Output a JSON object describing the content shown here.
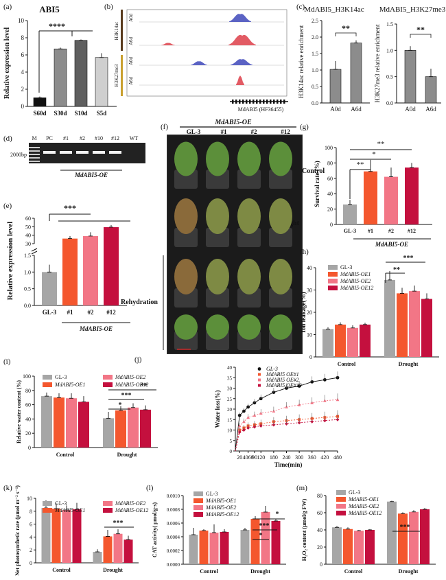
{
  "panel_labels": {
    "a": "(a)",
    "b": "(b)",
    "c": "(c)",
    "d": "(d)",
    "e": "(e)",
    "f": "(f)",
    "g": "(g)",
    "h": "(h)",
    "i": "(i)",
    "j": "(j)",
    "k": "(k)",
    "l": "(l)",
    "m": "(m)"
  },
  "colors": {
    "gl3": "#a6a6a6",
    "oe1": "#f4572e",
    "oe2": "#f27686",
    "oe12": "#c4103e",
    "ctrl": "#7f7f7f",
    "dark": "#111111",
    "peak_blue": "#5b63c4",
    "peak_red": "#e25b64"
  },
  "chart_data": [
    {
      "id": "a",
      "type": "bar",
      "title": "ABI5",
      "ylabel": "Relative expression level",
      "categories": [
        "S60d",
        "S30d",
        "S10d",
        "S5d"
      ],
      "values": [
        1.0,
        6.7,
        7.7,
        5.7
      ],
      "errors": [
        0.15,
        0.15,
        0.1,
        0.5
      ],
      "ylim": [
        0,
        10
      ],
      "yticks": [
        0,
        2,
        4,
        6,
        8,
        10
      ],
      "sig": "****",
      "bar_colors": [
        "#111111",
        "#8c8c8c",
        "#5f5f5f",
        "#cfcfcf"
      ]
    },
    {
      "id": "b",
      "type": "track",
      "tracks": [
        "H3K14ac",
        "H3K27me3"
      ],
      "rows": [
        "A0d",
        "A6d",
        "A0d",
        "A6d"
      ],
      "gene_label": "MdABI5 (HF36455)"
    },
    {
      "id": "c1",
      "type": "bar",
      "title": "MdABI5_H3K14ac",
      "ylabel": "H3K14ac relative enrichment",
      "categories": [
        "A0d",
        "A6d"
      ],
      "values": [
        1.02,
        1.82
      ],
      "errors": [
        0.25,
        0.08
      ],
      "ylim": [
        0,
        2.5
      ],
      "yticks": [
        "0.0",
        "0.5",
        "1.0",
        "1.5",
        "2.0",
        "2.5"
      ],
      "sig": "**",
      "bar_colors": [
        "#8c8c8c",
        "#8c8c8c"
      ]
    },
    {
      "id": "c2",
      "type": "bar",
      "title": "MdABI5_H3K27me3",
      "ylabel": "H3K27me3 relative enrichment",
      "categories": [
        "A0d",
        "A6d"
      ],
      "values": [
        1.0,
        0.5
      ],
      "errors": [
        0.08,
        0.15
      ],
      "ylim": [
        0,
        1.5
      ],
      "yticks": [
        "0.0",
        "0.5",
        "1.0",
        "1.5"
      ],
      "sig": "**",
      "bar_colors": [
        "#8c8c8c",
        "#8c8c8c"
      ]
    },
    {
      "id": "d",
      "type": "gel",
      "marker_label": "2000bp",
      "lanes": [
        "M",
        "PC",
        "#1",
        "#2",
        "#10",
        "#12",
        "WT"
      ],
      "group_label": "MdABI5-OE"
    },
    {
      "id": "e",
      "type": "bar",
      "ylabel": "Relative expression level",
      "categories": [
        "GL-3",
        "#1",
        "#2",
        "#12"
      ],
      "values": [
        1.0,
        36,
        39,
        49.5
      ],
      "errors": [
        0.22,
        3,
        4.5,
        2.5
      ],
      "yticks_top": [
        "30",
        "40",
        "50",
        "60"
      ],
      "yticks_bottom": [
        "0.0",
        "0.5",
        "1.0",
        "1.5"
      ],
      "group_label": "MdABI5-OE",
      "sig": "***"
    },
    {
      "id": "f",
      "type": "photo",
      "header": "MdABI5-OE",
      "columns": [
        "GL-3",
        "#1",
        "#2",
        "#12"
      ],
      "rows": [
        "Control",
        "Drought",
        "Rehydration"
      ]
    },
    {
      "id": "g",
      "type": "bar",
      "ylabel": "Survival rate (%)",
      "categories": [
        "GL-3",
        "#1",
        "#2",
        "#12"
      ],
      "values": [
        26,
        69,
        62,
        74
      ],
      "errors": [
        6,
        15,
        12,
        6
      ],
      "ylim": [
        0,
        100
      ],
      "yticks": [
        "0",
        "20",
        "40",
        "60",
        "80",
        "100"
      ],
      "group_label": "MdABI5-OE",
      "sig": [
        "**",
        "*",
        "**"
      ]
    },
    {
      "id": "h",
      "type": "bar",
      "ylabel": "Ion leakage(%)",
      "categories": [
        "Control",
        "Drought"
      ],
      "series": [
        {
          "name": "GL-3",
          "values": [
            12.5,
            34.5
          ],
          "errors": [
            0.8,
            4
          ]
        },
        {
          "name": "MdABI5-OE1",
          "values": [
            14.5,
            28.5
          ],
          "errors": [
            1,
            2.5
          ]
        },
        {
          "name": "MdABI5-OE2",
          "values": [
            13,
            29.5
          ],
          "errors": [
            1.2,
            2.5
          ]
        },
        {
          "name": "MdABI5-OE12",
          "values": [
            14.5,
            26
          ],
          "errors": [
            0.8,
            2.5
          ]
        }
      ],
      "ylim": [
        0,
        40
      ],
      "yticks": [
        "0",
        "10",
        "20",
        "30",
        "40"
      ],
      "sig": [
        "**",
        "***"
      ]
    },
    {
      "id": "i",
      "type": "bar",
      "ylabel": "Relative water content (%)",
      "categories": [
        "Control",
        "Drought"
      ],
      "series": [
        {
          "name": "GL-3",
          "values": [
            72,
            41
          ],
          "errors": [
            5,
            9
          ]
        },
        {
          "name": "MdABI5-OE1",
          "values": [
            70,
            52
          ],
          "errors": [
            6,
            6
          ]
        },
        {
          "name": "MdABI5-OE2",
          "values": [
            69,
            56
          ],
          "errors": [
            7,
            6
          ]
        },
        {
          "name": "MdABI5-OE12",
          "values": [
            64,
            53
          ],
          "errors": [
            8,
            6
          ]
        }
      ],
      "ylim": [
        0,
        100
      ],
      "yticks": [
        "0",
        "20",
        "40",
        "60",
        "80",
        "100"
      ],
      "sig": [
        "*",
        "***",
        "**"
      ]
    },
    {
      "id": "j",
      "type": "line",
      "ylabel": "Water loss(%)",
      "xlabel": "Time(min)",
      "x": [
        20,
        40,
        60,
        90,
        120,
        180,
        240,
        300,
        360,
        420,
        480
      ],
      "xticks": [
        "20",
        "4060",
        "90",
        "120",
        "180",
        "240",
        "300",
        "360",
        "420",
        "480"
      ],
      "series": [
        {
          "name": "GL-3",
          "values": [
            17,
            19,
            21,
            23,
            25,
            28,
            30,
            31,
            33,
            34,
            35
          ]
        },
        {
          "name": "MdABI5 OE#1",
          "values": [
            10,
            11,
            12,
            12.5,
            13,
            14,
            14.5,
            15,
            15.5,
            16,
            16.5
          ]
        },
        {
          "name": "MdABI5 OE#2",
          "values": [
            12,
            14,
            16,
            17,
            18,
            19,
            21,
            22,
            23,
            24,
            24.5
          ]
        },
        {
          "name": "MdABI5 OE#12",
          "values": [
            9,
            10,
            11,
            11.5,
            12,
            12.5,
            13,
            13.5,
            14,
            14.5,
            15
          ]
        }
      ],
      "ylim": [
        0,
        40
      ],
      "yticks": [
        "0",
        "5",
        "10",
        "15",
        "20",
        "25",
        "30",
        "35",
        "40"
      ]
    },
    {
      "id": "k",
      "type": "bar",
      "ylabel": "Net photosynthetic rate (µmol m⁻² s⁻¹)",
      "categories": [
        "Control",
        "Drought"
      ],
      "series": [
        {
          "name": "GL-3",
          "values": [
            8.5,
            1.7
          ],
          "errors": [
            1.2,
            0.4
          ]
        },
        {
          "name": "MdABI5-OE1",
          "values": [
            8.4,
            4.1
          ],
          "errors": [
            0.8,
            1
          ]
        },
        {
          "name": "MdABI5-OE2",
          "values": [
            8.2,
            4.5
          ],
          "errors": [
            0.7,
            0.7
          ]
        },
        {
          "name": "MdABI5-OE12",
          "values": [
            8.3,
            3.6
          ],
          "errors": [
            1,
            0.6
          ]
        }
      ],
      "ylim": [
        0,
        10
      ],
      "yticks": [
        "0",
        "2",
        "4",
        "6",
        "8",
        "10"
      ],
      "sig": [
        "***"
      ]
    },
    {
      "id": "l",
      "type": "bar",
      "ylabel": "CAT activity( µmol/g·s)",
      "categories": [
        "Control",
        "Drought"
      ],
      "series": [
        {
          "name": "GL-3",
          "values": [
            0.00043,
            0.0005
          ],
          "errors": [
            0.0001,
            3e-05
          ]
        },
        {
          "name": "MdABI5-OE1",
          "values": [
            0.00049,
            0.00066
          ],
          "errors": [
            2e-05,
            4e-05
          ]
        },
        {
          "name": "MdABI5-OE2",
          "values": [
            0.00046,
            0.00076
          ],
          "errors": [
            0.00012,
            9e-05
          ]
        },
        {
          "name": "MdABI5-OE12",
          "values": [
            0.00047,
            0.00063
          ],
          "errors": [
            4e-05,
            3e-05
          ]
        }
      ],
      "ylim": [
        0,
        0.001
      ],
      "yticks": [
        "0.0000",
        "0.0002",
        "0.0004",
        "0.0006",
        "0.0008",
        "0.0010"
      ],
      "sig": [
        "*",
        "***",
        "*"
      ]
    },
    {
      "id": "m",
      "type": "bar",
      "ylabel": "H₂O₂ content (µmol/g FW)",
      "categories": [
        "Control",
        "Drought"
      ],
      "series": [
        {
          "name": "GL-3",
          "values": [
            43,
            73
          ],
          "errors": [
            1.5,
            1
          ]
        },
        {
          "name": "MdABI5-OE1",
          "values": [
            41,
            59
          ],
          "errors": [
            2,
            1.5
          ]
        },
        {
          "name": "MdABI5-OE2",
          "values": [
            39,
            61
          ],
          "errors": [
            1,
            2
          ]
        },
        {
          "name": "MdABI5-OE12",
          "values": [
            40,
            64
          ],
          "errors": [
            1,
            1.5
          ]
        }
      ],
      "ylim": [
        0,
        80
      ],
      "yticks": [
        "0",
        "20",
        "40",
        "60",
        "80"
      ],
      "sig": [
        "***"
      ]
    }
  ]
}
